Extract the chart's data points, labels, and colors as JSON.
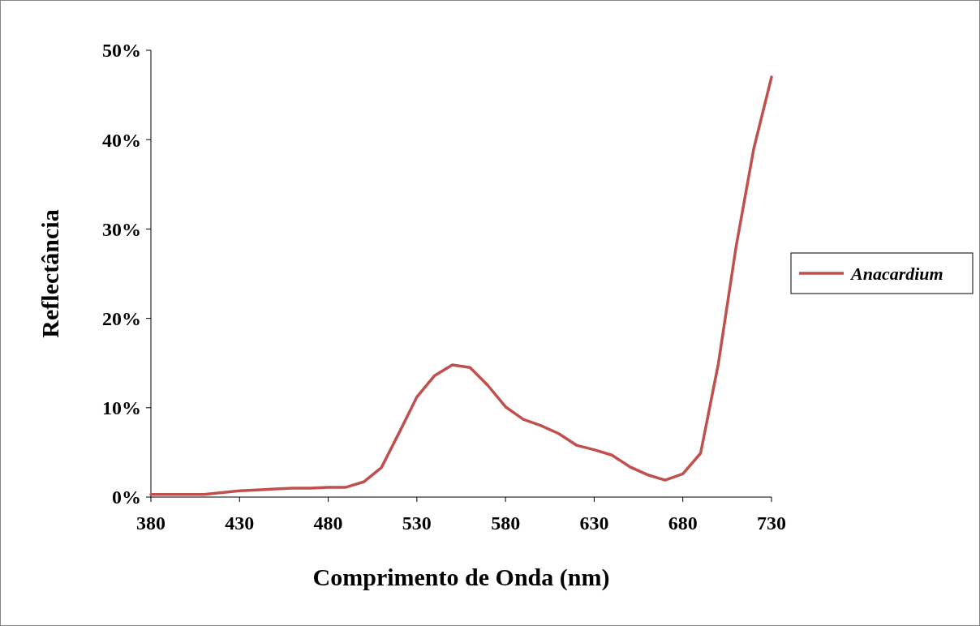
{
  "chart_data": {
    "type": "line",
    "xlabel": "Comprimento de Onda (nm)",
    "ylabel": "Reflectância",
    "x": [
      380,
      390,
      400,
      410,
      420,
      430,
      440,
      450,
      460,
      470,
      480,
      490,
      500,
      510,
      520,
      530,
      540,
      550,
      560,
      570,
      580,
      590,
      600,
      610,
      620,
      630,
      640,
      650,
      660,
      670,
      680,
      690,
      700,
      710,
      720,
      730
    ],
    "series": [
      {
        "name": "Anacardium",
        "color": "#c0504d",
        "values": [
          0.3,
          0.3,
          0.3,
          0.3,
          0.5,
          0.7,
          0.8,
          0.9,
          1.0,
          1.0,
          1.1,
          1.1,
          1.7,
          3.3,
          7.2,
          11.2,
          13.6,
          14.8,
          14.5,
          12.5,
          10.1,
          8.7,
          8.0,
          7.1,
          5.8,
          5.3,
          4.7,
          3.4,
          2.5,
          1.9,
          2.6,
          4.9,
          14.9,
          28,
          39,
          47
        ]
      }
    ],
    "xlim": [
      380,
      730
    ],
    "xticks": [
      380,
      430,
      480,
      530,
      580,
      630,
      680,
      730
    ],
    "ylim": [
      0,
      50
    ],
    "yticks": [
      {
        "value": 0,
        "label": "0%"
      },
      {
        "value": 10,
        "label": "10%"
      },
      {
        "value": 20,
        "label": "20%"
      },
      {
        "value": 30,
        "label": "30%"
      },
      {
        "value": 40,
        "label": "40%"
      },
      {
        "value": 50,
        "label": "50%"
      }
    ],
    "grid": false,
    "legend": "right",
    "marker": "none",
    "line_style": "solid"
  }
}
